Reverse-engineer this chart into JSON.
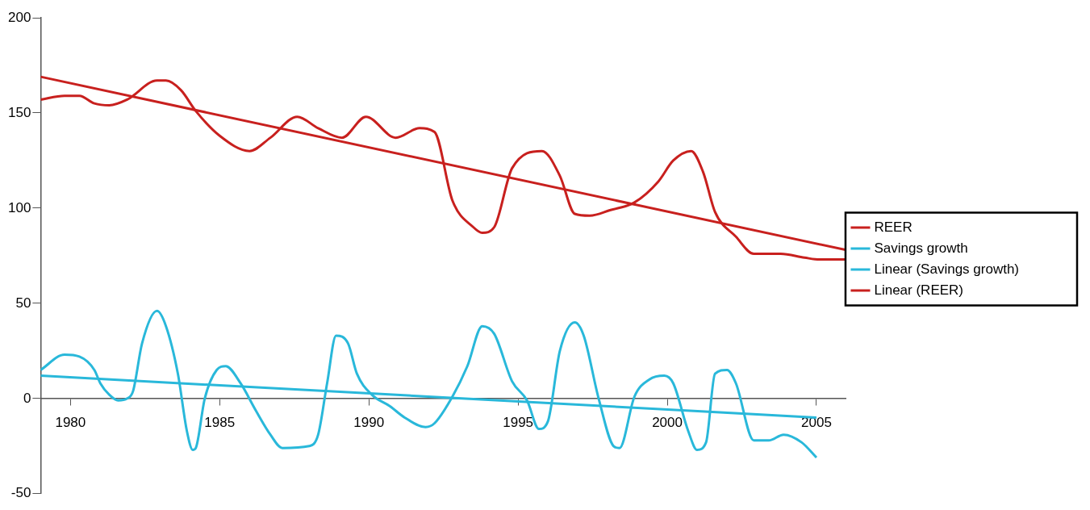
{
  "chart_data": {
    "type": "line",
    "xlim": [
      1979,
      2006
    ],
    "xticks": [
      1980,
      1985,
      1990,
      1995,
      2000,
      2005
    ],
    "ylim": [
      -50,
      200
    ],
    "yticks": [
      -50,
      0,
      50,
      100,
      150,
      200
    ],
    "grid": false,
    "legend": "right",
    "marker": "none",
    "line_style": "solid",
    "series": [
      {
        "name": "REER",
        "color": "#c8201e",
        "x": [
          1979.0,
          1979.8,
          1980.3,
          1980.8,
          1981.3,
          1981.9,
          1982.9,
          1983.2,
          1983.7,
          1984.2,
          1985.0,
          1986.0,
          1986.7,
          1987.6,
          1988.3,
          1989.1,
          1989.9,
          1990.9,
          1991.7,
          1992.2,
          1992.8,
          1993.5,
          1993.8,
          1994.2,
          1994.8,
          1995.8,
          1996.4,
          1996.9,
          1997.4,
          1998.1,
          1998.9,
          1999.7,
          2000.2,
          2000.8,
          2001.2,
          2001.6,
          2002.3,
          2002.9,
          2003.8,
          2004.6,
          2005.1,
          2006.0
        ],
        "values": [
          157,
          159,
          159,
          155,
          154,
          157,
          167,
          167,
          162,
          151,
          138,
          130,
          137,
          148,
          142,
          137,
          148,
          137,
          142,
          140,
          104,
          90,
          87,
          90,
          121,
          130,
          117,
          97,
          96,
          99,
          103,
          114,
          125,
          130,
          119,
          98,
          85,
          76,
          76,
          74,
          73,
          73
        ]
      },
      {
        "name": "Savings growth",
        "color": "#29b8da",
        "x": [
          1979.0,
          1979.8,
          1980.3,
          1980.8,
          1981.0,
          1981.3,
          1981.6,
          1981.9,
          1982.1,
          1982.4,
          1982.9,
          1983.2,
          1983.6,
          1983.9,
          1984.1,
          1984.2,
          1984.5,
          1984.9,
          1985.2,
          1985.7,
          1986.2,
          1986.7,
          1987.1,
          1988.0,
          1988.3,
          1988.6,
          1988.9,
          1989.3,
          1989.6,
          1990.1,
          1990.7,
          1991.2,
          1991.9,
          1992.2,
          1992.8,
          1993.3,
          1993.8,
          1994.2,
          1994.8,
          1995.3,
          1995.7,
          1996.0,
          1996.4,
          1996.9,
          1997.2,
          1997.7,
          1998.2,
          1998.4,
          1998.9,
          1999.4,
          1999.9,
          2000.2,
          2000.7,
          2001.0,
          2001.3,
          2001.6,
          2002.0,
          2002.3,
          2002.9,
          2003.4,
          2003.9,
          2004.5,
          2005.0
        ],
        "values": [
          15,
          23,
          22,
          15,
          8,
          2,
          -1,
          0,
          4,
          29,
          46,
          38,
          13,
          -17,
          -27,
          -26,
          0,
          15,
          17,
          8,
          -6,
          -19,
          -26,
          -25,
          -19,
          8,
          33,
          29,
          13,
          2,
          -4,
          -10,
          -15,
          -13,
          1,
          17,
          38,
          34,
          9,
          -1,
          -16,
          -12,
          25,
          40,
          33,
          0,
          -25,
          -26,
          1,
          10,
          12,
          8,
          -17,
          -27,
          -23,
          13,
          15,
          8,
          -22,
          -22,
          -19,
          -23,
          -31
        ]
      },
      {
        "name": "Linear (Savings growth)",
        "color": "#29b8da",
        "x": [
          1979,
          2005
        ],
        "values": [
          12,
          -10
        ]
      },
      {
        "name": "Linear (REER)",
        "color": "#c8201e",
        "x": [
          1979,
          2006
        ],
        "values": [
          169,
          78
        ]
      }
    ]
  }
}
